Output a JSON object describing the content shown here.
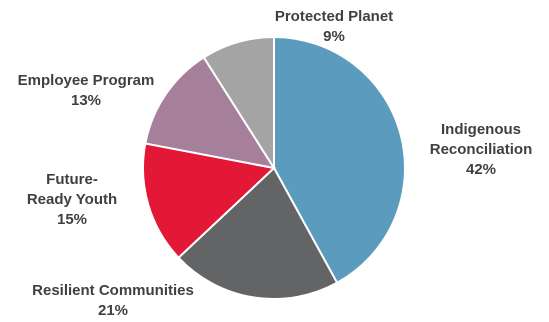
{
  "chart_data": {
    "type": "pie",
    "start_angle_deg": 0,
    "direction": "clockwise",
    "slices": [
      {
        "id": "indigenous-reconciliation",
        "label_lines": [
          "Indigenous",
          "Reconciliation"
        ],
        "value": 42,
        "value_label": "42%",
        "color": "#5b9bbd"
      },
      {
        "id": "resilient-communities",
        "label_lines": [
          "Resilient Communities"
        ],
        "value": 21,
        "value_label": "21%",
        "color": "#636466"
      },
      {
        "id": "future-ready-youth",
        "label_lines": [
          "Future-",
          "Ready Youth"
        ],
        "value": 15,
        "value_label": "15%",
        "color": "#e31837"
      },
      {
        "id": "employee-program",
        "label_lines": [
          "Employee Program"
        ],
        "value": 13,
        "value_label": "13%",
        "color": "#a67f9a"
      },
      {
        "id": "protected-planet",
        "label_lines": [
          "Protected Planet"
        ],
        "value": 9,
        "value_label": "9%",
        "color": "#a4a4a4"
      }
    ]
  }
}
